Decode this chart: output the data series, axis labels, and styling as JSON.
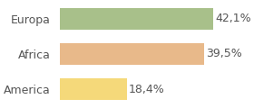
{
  "categories": [
    "America",
    "Africa",
    "Europa"
  ],
  "values": [
    18.4,
    39.5,
    42.1
  ],
  "labels": [
    "18,4%",
    "39,5%",
    "42,1%"
  ],
  "bar_colors": [
    "#f5d97a",
    "#e8b98a",
    "#a8c08a"
  ],
  "background_color": "#ffffff",
  "xlim": [
    0,
    52
  ],
  "label_fontsize": 9,
  "tick_fontsize": 9
}
